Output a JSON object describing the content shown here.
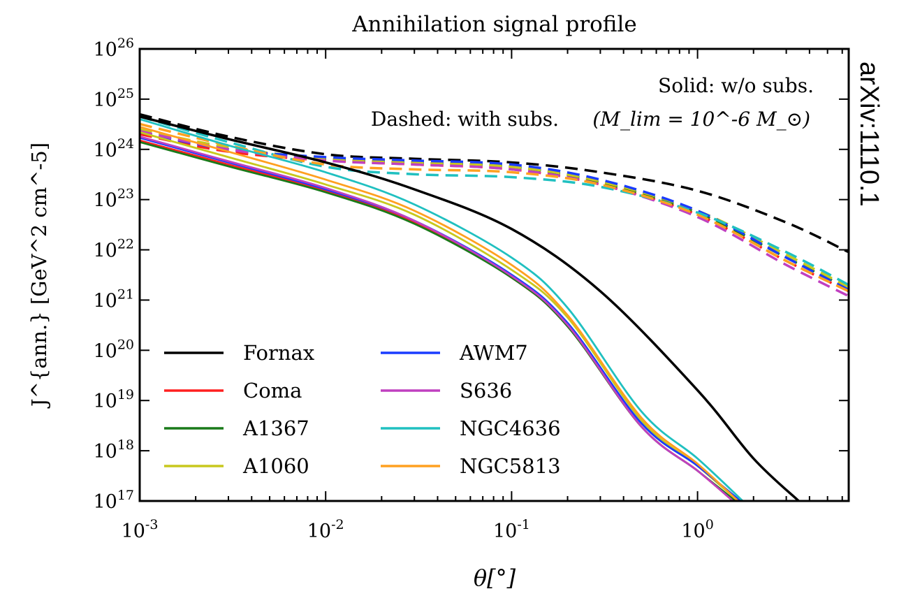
{
  "chart_data": {
    "type": "line",
    "title": "Annihilation signal profile",
    "xlabel": "θ[°]",
    "ylabel": "J^{ann.} [GeV^2 cm^-5]",
    "x_scale": "log",
    "y_scale": "log",
    "xlim": [
      0.001,
      6.5
    ],
    "ylim": [
      1e+17,
      1e+26
    ],
    "x_ticks": [
      {
        "value": 0.001,
        "base": "10",
        "exp": "-3"
      },
      {
        "value": 0.01,
        "base": "10",
        "exp": "-2"
      },
      {
        "value": 0.1,
        "base": "10",
        "exp": "-1"
      },
      {
        "value": 1,
        "base": "10",
        "exp": "0"
      }
    ],
    "y_ticks": [
      {
        "value": 1e+17,
        "base": "10",
        "exp": "17"
      },
      {
        "value": 1e+18,
        "base": "10",
        "exp": "18"
      },
      {
        "value": 1e+19,
        "base": "10",
        "exp": "19"
      },
      {
        "value": 1e+20,
        "base": "10",
        "exp": "20"
      },
      {
        "value": 1e+21,
        "base": "10",
        "exp": "21"
      },
      {
        "value": 1e+22,
        "base": "10",
        "exp": "22"
      },
      {
        "value": 1e+23,
        "base": "10",
        "exp": "23"
      },
      {
        "value": 1e+24,
        "base": "10",
        "exp": "24"
      },
      {
        "value": 1e+25,
        "base": "10",
        "exp": "25"
      },
      {
        "value": 1e+26,
        "base": "10",
        "exp": "26"
      }
    ],
    "annotations": {
      "solid_note": "Solid: w/o subs.",
      "dashed_note": "Dashed: with subs.",
      "mlim_note": "(M_lim = 10^-6 M_⊙)"
    },
    "legend_placement": "lower-left",
    "series": [
      {
        "name": "Fornax",
        "color": "#000000",
        "solid": {
          "x": [
            0.001,
            0.003,
            0.01,
            0.03,
            0.1,
            0.3,
            1,
            2,
            3.5
          ],
          "y": [
            4.5e+24,
            1.6e+24,
            5.5e+23,
            1.6e+23,
            2.6e+22,
            1.5e+21,
            1.6e+19,
            7e+17,
            1e+17
          ]
        },
        "dashed": {
          "x": [
            0.001,
            0.003,
            0.01,
            0.03,
            0.1,
            0.3,
            1,
            3,
            6.5
          ],
          "y": [
            5e+24,
            1.8e+24,
            8e+23,
            6.5e+23,
            5.5e+23,
            3.5e+23,
            1.5e+23,
            3.5e+22,
            9e+21
          ]
        }
      },
      {
        "name": "Coma",
        "color": "#ff2020",
        "solid": {
          "x": [
            0.001,
            0.003,
            0.01,
            0.03,
            0.1,
            0.2,
            0.5,
            1,
            1.55
          ],
          "y": [
            1.5e+24,
            5e+23,
            1.5e+23,
            3.5e+22,
            2.8e+21,
            3e+20,
            3e+18,
            4e+17,
            1e+17
          ]
        },
        "dashed": {
          "x": [
            0.001,
            0.003,
            0.01,
            0.03,
            0.1,
            0.3,
            1,
            3,
            6.5
          ],
          "y": [
            2e+24,
            9e+23,
            6e+23,
            5e+23,
            4e+23,
            2e+23,
            5e+22,
            6e+21,
            1.5e+21
          ]
        }
      },
      {
        "name": "A1367",
        "color": "#1a7a1a",
        "solid": {
          "x": [
            0.001,
            0.003,
            0.01,
            0.03,
            0.1,
            0.2,
            0.5,
            1,
            1.6
          ],
          "y": [
            1.4e+24,
            4.6e+23,
            1.4e+23,
            3.3e+22,
            2.8e+21,
            3e+20,
            3e+18,
            4e+17,
            1e+17
          ]
        },
        "dashed": {
          "x": [
            0.001,
            0.003,
            0.01,
            0.03,
            0.1,
            0.3,
            1,
            3,
            6.5
          ],
          "y": [
            2.2e+24,
            1e+24,
            6.5e+23,
            5.5e+23,
            4.5e+23,
            2.2e+23,
            5.5e+22,
            7e+21,
            1.7e+21
          ]
        }
      },
      {
        "name": "A1060",
        "color": "#c8c81e",
        "solid": {
          "x": [
            0.001,
            0.003,
            0.01,
            0.03,
            0.1,
            0.2,
            0.5,
            1,
            1.65
          ],
          "y": [
            2.2e+24,
            7e+23,
            2e+23,
            5e+22,
            4e+21,
            4.5e+20,
            4e+18,
            5e+17,
            1e+17
          ]
        },
        "dashed": {
          "x": [
            0.001,
            0.003,
            0.01,
            0.03,
            0.1,
            0.3,
            1,
            3,
            6.5
          ],
          "y": [
            2.5e+24,
            1.1e+24,
            6.5e+23,
            5.5e+23,
            4.5e+23,
            2.3e+23,
            6e+22,
            8e+21,
            1.8e+21
          ]
        }
      },
      {
        "name": "AWM7",
        "color": "#1a3cff",
        "solid": {
          "x": [
            0.001,
            0.003,
            0.01,
            0.03,
            0.1,
            0.2,
            0.5,
            1,
            1.7
          ],
          "y": [
            1.7e+24,
            5.5e+23,
            1.6e+23,
            3.8e+22,
            3.2e+21,
            3.5e+20,
            3.5e+18,
            5e+17,
            1e+17
          ]
        },
        "dashed": {
          "x": [
            0.001,
            0.003,
            0.01,
            0.03,
            0.1,
            0.3,
            1,
            3,
            6.5
          ],
          "y": [
            2.2e+24,
            1e+24,
            7e+23,
            6e+23,
            5e+23,
            2.5e+23,
            6e+22,
            7e+21,
            1.6e+21
          ]
        }
      },
      {
        "name": "S636",
        "color": "#c040c0",
        "solid": {
          "x": [
            0.001,
            0.003,
            0.01,
            0.03,
            0.1,
            0.2,
            0.5,
            1,
            1.55
          ],
          "y": [
            1.8e+24,
            5.8e+23,
            1.7e+23,
            3.8e+22,
            3e+21,
            3.2e+20,
            3e+18,
            4e+17,
            1e+17
          ]
        },
        "dashed": {
          "x": [
            0.001,
            0.003,
            0.01,
            0.03,
            0.1,
            0.3,
            1,
            3,
            6.5
          ],
          "y": [
            2.3e+24,
            1e+24,
            6e+23,
            5e+23,
            4e+23,
            2e+23,
            4.5e+22,
            5e+21,
            1.2e+21
          ]
        }
      },
      {
        "name": "NGC4636",
        "color": "#20c0c0",
        "solid": {
          "x": [
            0.001,
            0.003,
            0.01,
            0.03,
            0.1,
            0.2,
            0.5,
            1,
            1.75
          ],
          "y": [
            4e+24,
            1.2e+24,
            3.5e+23,
            8e+22,
            7e+21,
            7e+20,
            6e+18,
            7e+17,
            1e+17
          ]
        },
        "dashed": {
          "x": [
            0.001,
            0.003,
            0.01,
            0.03,
            0.1,
            0.3,
            1,
            3,
            6.5
          ],
          "y": [
            4.5e+24,
            1.4e+24,
            4.5e+23,
            3.2e+23,
            2.8e+23,
            1.8e+23,
            5.5e+22,
            9e+21,
            2e+21
          ]
        }
      },
      {
        "name": "NGC5813",
        "color": "#ffa020",
        "solid": {
          "x": [
            0.001,
            0.003,
            0.01,
            0.03,
            0.1,
            0.2,
            0.5,
            1,
            1.65
          ],
          "y": [
            2.8e+24,
            9e+23,
            2.5e+23,
            6e+22,
            5e+21,
            5e+20,
            4.5e+18,
            5.5e+17,
            1e+17
          ]
        },
        "dashed": {
          "x": [
            0.001,
            0.003,
            0.01,
            0.03,
            0.1,
            0.3,
            1,
            3,
            6.5
          ],
          "y": [
            3.2e+24,
            1.2e+24,
            5e+23,
            4e+23,
            3.5e+23,
            2e+23,
            5e+22,
            6e+21,
            1.5e+21
          ]
        }
      }
    ]
  },
  "watermark": "arXiv:1110.1"
}
